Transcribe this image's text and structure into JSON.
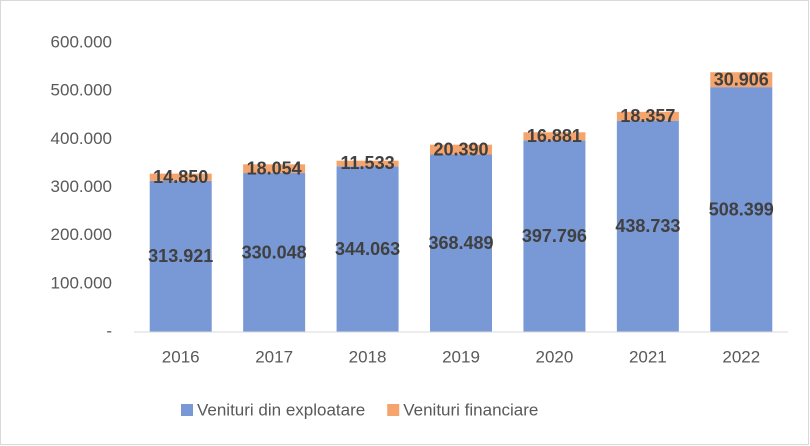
{
  "chart_data": {
    "type": "stacked_bar",
    "categories": [
      "2016",
      "2017",
      "2018",
      "2019",
      "2020",
      "2021",
      "2022"
    ],
    "series": [
      {
        "name": "Venituri din exploatare",
        "color": "#7899d6",
        "values": [
          313921,
          330048,
          344063,
          368489,
          397796,
          438733,
          508399
        ],
        "value_labels": [
          "313.921",
          "330.048",
          "344.063",
          "368.489",
          "397.796",
          "438.733",
          "508.399"
        ]
      },
      {
        "name": "Venituri financiare",
        "color": "#f4a46c",
        "values": [
          14850,
          18054,
          11533,
          20390,
          16881,
          18357,
          30906
        ],
        "value_labels": [
          "14.850",
          "18.054",
          "11.533",
          "20.390",
          "16.881",
          "18.357",
          "30.906"
        ]
      }
    ],
    "ylim": [
      0,
      600000
    ],
    "yticks": [
      {
        "value": 0,
        "label": "-"
      },
      {
        "value": 100000,
        "label": "100.000"
      },
      {
        "value": 200000,
        "label": "200.000"
      },
      {
        "value": 300000,
        "label": "300.000"
      },
      {
        "value": 400000,
        "label": "400.000"
      },
      {
        "value": 500000,
        "label": "500.000"
      },
      {
        "value": 600000,
        "label": "600.000"
      }
    ],
    "grid": false,
    "legend": "bottom"
  }
}
